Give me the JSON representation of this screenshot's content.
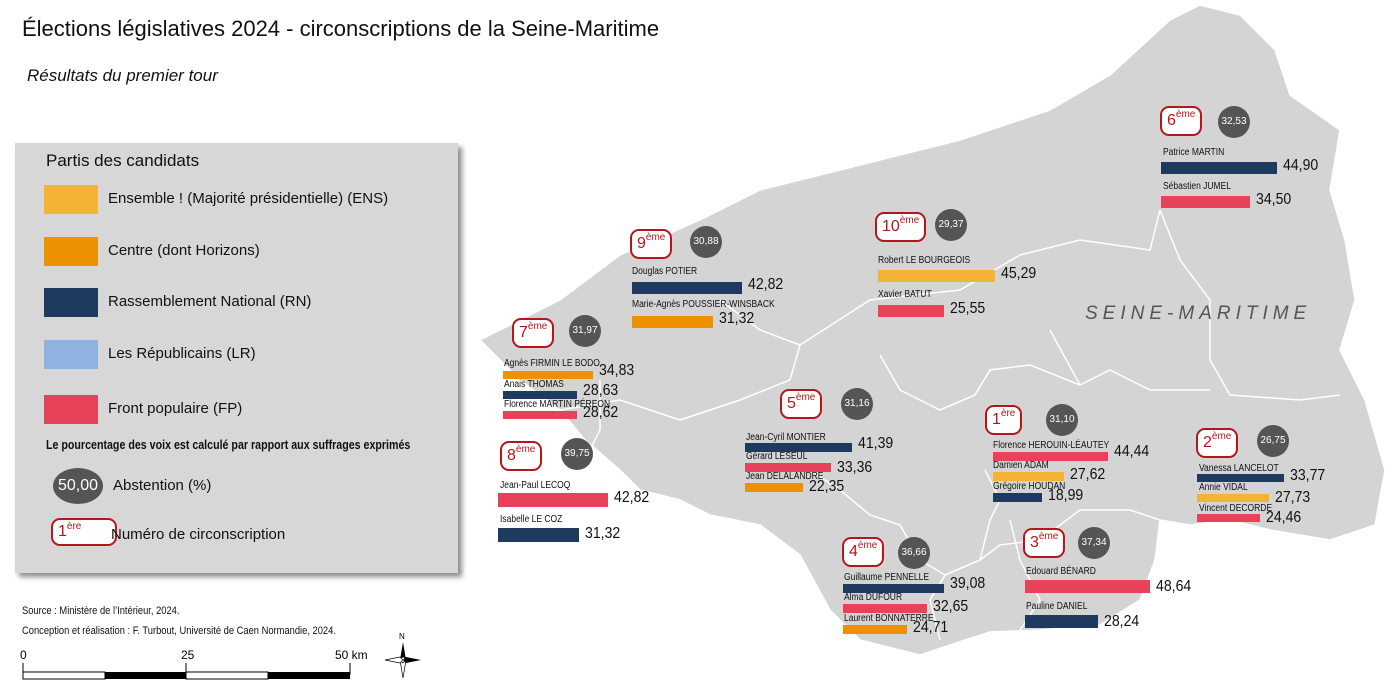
{
  "title": "Élections législatives 2024 - circonscriptions de la Seine-Maritime",
  "subtitle": "Résultats du premier tour",
  "region_label": "SEINE-MARITIME",
  "legend": {
    "title": "Partis des candidats",
    "parties": [
      {
        "label": "Ensemble ! (Majorité présidentielle) (ENS)",
        "color": "#f5b335"
      },
      {
        "label": "Centre (dont Horizons)",
        "color": "#ee9100"
      },
      {
        "label": "Rassemblement National (RN)",
        "color": "#1e3a5f"
      },
      {
        "label": "Les Républicains (LR)",
        "color": "#8eb3e0"
      },
      {
        "label": "Front populaire (FP)",
        "color": "#e8425a"
      }
    ],
    "note": "Le pourcentage des voix est calculé par rapport aux suffrages exprimés",
    "abstention_example": "50,00",
    "abstention_label": "Abstention (%)",
    "circ_example_num": "1",
    "circ_example_sup": "ère",
    "circ_label": "Numéro de circonscription"
  },
  "districts": [
    {
      "num": "1",
      "sup": "ère",
      "abstention": "31,10",
      "candidates": [
        {
          "name": "Florence HEROUIN-LÉAUTEY",
          "party": "FP",
          "score": "44,44",
          "value": 44.44
        },
        {
          "name": "Damien ADAM",
          "party": "ENS",
          "score": "27,62",
          "value": 27.62
        },
        {
          "name": "Grégoire HOUDAN",
          "party": "RN",
          "score": "18,99",
          "value": 18.99
        }
      ]
    },
    {
      "num": "2",
      "sup": "ème",
      "abstention": "26,75",
      "candidates": [
        {
          "name": "Vanessa LANCELOT",
          "party": "RN",
          "score": "33,77",
          "value": 33.77
        },
        {
          "name": "Annie VIDAL",
          "party": "ENS",
          "score": "27,73",
          "value": 27.73
        },
        {
          "name": "Vincent DECORDE",
          "party": "FP",
          "score": "24,46",
          "value": 24.46
        }
      ]
    },
    {
      "num": "3",
      "sup": "ème",
      "abstention": "37,34",
      "candidates": [
        {
          "name": "Edouard BÉNARD",
          "party": "FP",
          "score": "48,64",
          "value": 48.64
        },
        {
          "name": "Pauline DANIEL",
          "party": "RN",
          "score": "28,24",
          "value": 28.24
        }
      ]
    },
    {
      "num": "4",
      "sup": "ème",
      "abstention": "36,66",
      "candidates": [
        {
          "name": "Guillaume PENNELLE",
          "party": "RN",
          "score": "39,08",
          "value": 39.08
        },
        {
          "name": "Alma DUFOUR",
          "party": "FP",
          "score": "32,65",
          "value": 32.65
        },
        {
          "name": "Laurent BONNATERRE",
          "party": "CENTRE",
          "score": "24,71",
          "value": 24.71
        }
      ]
    },
    {
      "num": "5",
      "sup": "ème",
      "abstention": "31,16",
      "candidates": [
        {
          "name": "Jean-Cyril MONTIER",
          "party": "RN",
          "score": "41,39",
          "value": 41.39
        },
        {
          "name": "Gérard LESEUL",
          "party": "FP",
          "score": "33,36",
          "value": 33.36
        },
        {
          "name": "Jean DELALANDRE",
          "party": "CENTRE",
          "score": "22,35",
          "value": 22.35
        }
      ]
    },
    {
      "num": "6",
      "sup": "ème",
      "abstention": "32,53",
      "candidates": [
        {
          "name": "Patrice MARTIN",
          "party": "RN",
          "score": "44,90",
          "value": 44.9
        },
        {
          "name": "Sébastien JUMEL",
          "party": "FP",
          "score": "34,50",
          "value": 34.5
        }
      ]
    },
    {
      "num": "7",
      "sup": "ème",
      "abstention": "31,97",
      "candidates": [
        {
          "name": "Agnès FIRMIN LE BODO",
          "party": "CENTRE",
          "score": "34,83",
          "value": 34.83
        },
        {
          "name": "Anais THOMAS",
          "party": "RN",
          "score": "28,63",
          "value": 28.63
        },
        {
          "name": "Florence MARTIN PÉREON",
          "party": "FP",
          "score": "28,62",
          "value": 28.62
        }
      ]
    },
    {
      "num": "8",
      "sup": "ème",
      "abstention": "39,75",
      "candidates": [
        {
          "name": "Jean-Paul LECOQ",
          "party": "FP",
          "score": "42,82",
          "value": 42.82
        },
        {
          "name": "Isabelle LE COZ",
          "party": "RN",
          "score": "31,32",
          "value": 31.32
        }
      ]
    },
    {
      "num": "9",
      "sup": "ème",
      "abstention": "30,88",
      "candidates": [
        {
          "name": "Douglas POTIER",
          "party": "RN",
          "score": "42,82",
          "value": 42.82
        },
        {
          "name": "Marie-Agnès POUSSIER-WINSBACK",
          "party": "CENTRE",
          "score": "31,32",
          "value": 31.32
        }
      ]
    },
    {
      "num": "10",
      "sup": "ème",
      "abstention": "29,37",
      "candidates": [
        {
          "name": "Robert LE BOURGEOIS",
          "party": "ENS",
          "score": "45,29",
          "value": 45.29
        },
        {
          "name": "Xavier BATUT",
          "party": "FP",
          "score": "25,55",
          "value": 25.55
        }
      ]
    }
  ],
  "party_colors": {
    "ENS": "#f5b335",
    "CENTRE": "#ee9100",
    "RN": "#1e3a5f",
    "LR": "#8eb3e0",
    "FP": "#e8425a"
  },
  "source": "Source : Ministère de l’Intérieur, 2024.",
  "credits": "Conception et réalisation : F. Turbout, Université de Caen Normandie, 2024.",
  "scale": {
    "labels": [
      "0",
      "25",
      "50 km"
    ]
  },
  "north_label": "N"
}
